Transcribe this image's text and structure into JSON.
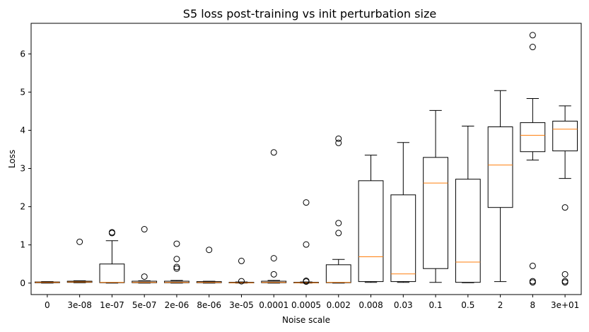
{
  "chart_data": {
    "type": "box",
    "title": "S5 loss post-training vs init perturbation size",
    "xlabel": "Noise scale",
    "ylabel": "Loss",
    "ylim": [
      -0.3,
      6.8
    ],
    "yticks": [
      0,
      1,
      2,
      3,
      4,
      5,
      6
    ],
    "grid": false,
    "colors": {
      "box": "#000000",
      "median": "#ff7f0e",
      "background": "#ffffff"
    },
    "categories": [
      "0",
      "3e-08",
      "1e-07",
      "5e-07",
      "2e-06",
      "8e-06",
      "3e-05",
      "0.0001",
      "0.0005",
      "0.002",
      "0.008",
      "0.03",
      "0.1",
      "0.5",
      "2",
      "8",
      "3e+01"
    ],
    "boxes": [
      {
        "low": 0.0,
        "q1": 0.01,
        "median": 0.02,
        "q3": 0.03,
        "high": 0.04,
        "fliers": []
      },
      {
        "low": 0.01,
        "q1": 0.02,
        "median": 0.03,
        "q3": 0.05,
        "high": 0.06,
        "fliers": [
          1.08
        ]
      },
      {
        "low": 0.0,
        "q1": 0.01,
        "median": 0.02,
        "q3": 0.5,
        "high": 1.11,
        "fliers": [
          1.31,
          1.33
        ]
      },
      {
        "low": 0.0,
        "q1": 0.01,
        "median": 0.02,
        "q3": 0.05,
        "high": 0.06,
        "fliers": [
          0.17,
          1.41
        ]
      },
      {
        "low": 0.0,
        "q1": 0.01,
        "median": 0.02,
        "q3": 0.05,
        "high": 0.07,
        "fliers": [
          0.38,
          0.42,
          0.63,
          1.03
        ]
      },
      {
        "low": 0.0,
        "q1": 0.01,
        "median": 0.02,
        "q3": 0.04,
        "high": 0.05,
        "fliers": [
          0.87
        ]
      },
      {
        "low": 0.0,
        "q1": 0.005,
        "median": 0.01,
        "q3": 0.02,
        "high": 0.03,
        "fliers": [
          0.05,
          0.58
        ]
      },
      {
        "low": 0.0,
        "q1": 0.01,
        "median": 0.02,
        "q3": 0.05,
        "high": 0.07,
        "fliers": [
          0.23,
          0.65,
          3.42
        ]
      },
      {
        "low": 0.0,
        "q1": 0.005,
        "median": 0.01,
        "q3": 0.02,
        "high": 0.03,
        "fliers": [
          0.04,
          0.06,
          1.01,
          2.11
        ]
      },
      {
        "low": 0.0,
        "q1": 0.01,
        "median": 0.02,
        "q3": 0.48,
        "high": 0.62,
        "fliers": [
          1.31,
          1.57,
          3.67,
          3.78
        ]
      },
      {
        "low": 0.02,
        "q1": 0.04,
        "median": 0.69,
        "q3": 2.68,
        "high": 3.35,
        "fliers": []
      },
      {
        "low": 0.02,
        "q1": 0.04,
        "median": 0.24,
        "q3": 2.31,
        "high": 3.68,
        "fliers": []
      },
      {
        "low": 0.02,
        "q1": 0.38,
        "median": 2.62,
        "q3": 3.29,
        "high": 4.52,
        "fliers": []
      },
      {
        "low": 0.01,
        "q1": 0.02,
        "median": 0.55,
        "q3": 2.72,
        "high": 4.11,
        "fliers": []
      },
      {
        "low": 0.04,
        "q1": 1.98,
        "median": 3.09,
        "q3": 4.09,
        "high": 5.04,
        "fliers": []
      },
      {
        "low": 3.22,
        "q1": 3.44,
        "median": 3.87,
        "q3": 4.2,
        "high": 4.83,
        "fliers": [
          0.02,
          0.05,
          0.45,
          6.18,
          6.49
        ]
      },
      {
        "low": 2.74,
        "q1": 3.46,
        "median": 4.03,
        "q3": 4.24,
        "high": 4.64,
        "fliers": [
          0.02,
          0.05,
          0.23,
          1.98
        ]
      }
    ]
  }
}
